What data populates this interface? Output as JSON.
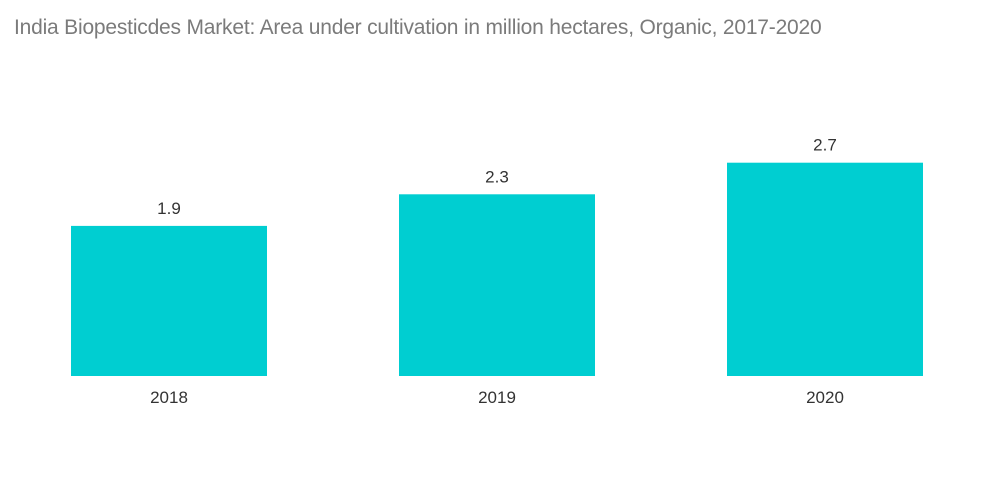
{
  "chart_data": {
    "type": "bar",
    "title": "India Biopesticdes Market: Area under cultivation in million hectares, Organic, 2017-2020",
    "categories": [
      "2018",
      "2019",
      "2020"
    ],
    "series": [
      {
        "values": [
          1.9,
          2.3,
          2.7
        ],
        "color": "#00ced1"
      }
    ],
    "data_labels": [
      "1.9",
      "2.3",
      "2.7"
    ],
    "xlabel": "",
    "ylabel": "",
    "ylim": [
      0,
      2.7
    ],
    "grid": false,
    "legend": "none"
  }
}
